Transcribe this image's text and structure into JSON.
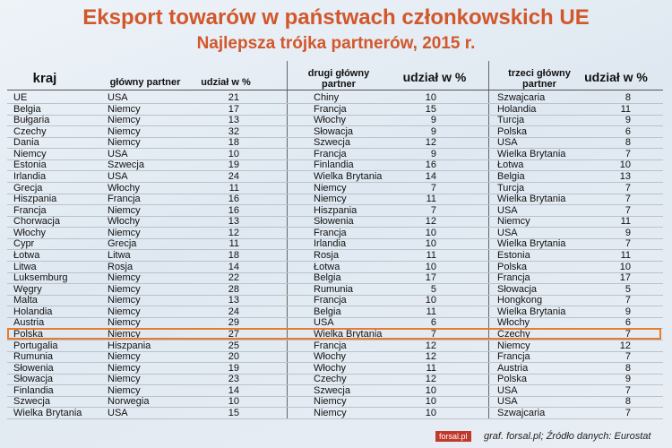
{
  "header": {
    "title": "Eksport towarów w państwach członkowskich UE",
    "subtitle": "Najlepsza trójka partnerów, 2015 r."
  },
  "table": {
    "columns": [
      "kraj",
      "główny partner",
      "udział w %",
      "drugi główny partner",
      "udział w %",
      "trzeci główny partner",
      "udział w %"
    ],
    "rows": [
      [
        "UE",
        "USA",
        21,
        "Chiny",
        10,
        "Szwajcaria",
        8
      ],
      [
        "Belgia",
        "Niemcy",
        17,
        "Francja",
        15,
        "Holandia",
        11
      ],
      [
        "Bułgaria",
        "Niemcy",
        13,
        "Włochy",
        9,
        "Turcja",
        9
      ],
      [
        "Czechy",
        "Niemcy",
        32,
        "Słowacja",
        9,
        "Polska",
        6
      ],
      [
        "Dania",
        "Niemcy",
        18,
        "Szwecja",
        12,
        "USA",
        8
      ],
      [
        "Niemcy",
        "USA",
        10,
        "Francja",
        9,
        "Wielka Brytania",
        7
      ],
      [
        "Estonia",
        "Szwecja",
        19,
        "Finlandia",
        16,
        "Łotwa",
        10
      ],
      [
        "Irlandia",
        "USA",
        24,
        "Wielka Brytania",
        14,
        "Belgia",
        13
      ],
      [
        "Grecja",
        "Włochy",
        11,
        "Niemcy",
        7,
        "Turcja",
        7
      ],
      [
        "Hiszpania",
        "Francja",
        16,
        "Niemcy",
        11,
        "Wielka Brytania",
        7
      ],
      [
        "Francja",
        "Niemcy",
        16,
        "Hiszpania",
        7,
        "USA",
        7
      ],
      [
        "Chorwacja",
        "Włochy",
        13,
        "Słowenia",
        12,
        "Niemcy",
        11
      ],
      [
        "Włochy",
        "Niemcy",
        12,
        "Francja",
        10,
        "USA",
        9
      ],
      [
        "Cypr",
        "Grecja",
        11,
        "Irlandia",
        10,
        "Wielka Brytania",
        7
      ],
      [
        "Łotwa",
        "Litwa",
        18,
        "Rosja",
        11,
        "Estonia",
        11
      ],
      [
        "Litwa",
        "Rosja",
        14,
        "Łotwa",
        10,
        "Polska",
        10
      ],
      [
        "Luksemburg",
        "Niemcy",
        22,
        "Belgia",
        17,
        "Francja",
        17
      ],
      [
        "Węgry",
        "Niemcy",
        28,
        "Rumunia",
        5,
        "Słowacja",
        5
      ],
      [
        "Malta",
        "Niemcy",
        13,
        "Francja",
        10,
        "Hongkong",
        7
      ],
      [
        "Holandia",
        "Niemcy",
        24,
        "Belgia",
        11,
        "Wielka Brytania",
        9
      ],
      [
        "Austria",
        "Niemcy",
        29,
        "USA",
        6,
        "Włochy",
        6
      ],
      [
        "Polska",
        "Niemcy",
        27,
        "Wielka Brytania",
        7,
        "Czechy",
        7
      ],
      [
        "Portugalia",
        "Hiszpania",
        25,
        "Francja",
        12,
        "Niemcy",
        12
      ],
      [
        "Rumunia",
        "Niemcy",
        20,
        "Włochy",
        12,
        "Francja",
        7
      ],
      [
        "Słowenia",
        "Niemcy",
        19,
        "Włochy",
        11,
        "Austria",
        8
      ],
      [
        "Słowacja",
        "Niemcy",
        23,
        "Czechy",
        12,
        "Polska",
        9
      ],
      [
        "Finlandia",
        "Niemcy",
        14,
        "Szwecja",
        10,
        "USA",
        7
      ],
      [
        "Szwecja",
        "Norwegia",
        10,
        "Niemcy",
        10,
        "USA",
        8
      ],
      [
        "Wielka Brytania",
        "USA",
        15,
        "Niemcy",
        10,
        "Szwajcaria",
        7
      ]
    ]
  },
  "footer": {
    "logo": "forsal.pl",
    "source": "graf. forsal.pl; Źródło danych: Eurostat"
  }
}
